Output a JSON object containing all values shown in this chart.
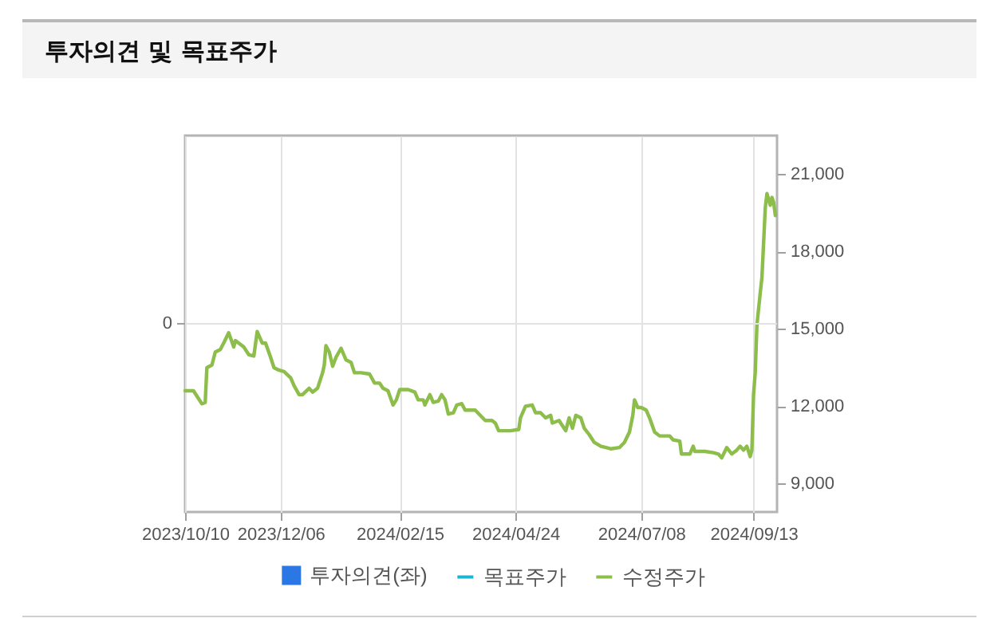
{
  "chart_data": {
    "type": "line",
    "title": "투자의견 및 목표주가",
    "x": [
      "2023-10-10",
      "2023-10-15",
      "2023-10-20",
      "2023-10-22",
      "2023-10-23",
      "2023-10-26",
      "2023-10-28",
      "2023-10-31",
      "2023-11-02",
      "2023-11-05",
      "2023-11-08",
      "2023-11-09",
      "2023-11-11",
      "2023-11-14",
      "2023-11-17",
      "2023-11-20",
      "2023-11-22",
      "2023-11-23",
      "2023-11-25",
      "2023-11-27",
      "2023-11-30",
      "2023-12-02",
      "2023-12-05",
      "2023-12-08",
      "2023-12-12",
      "2023-12-14",
      "2023-12-17",
      "2023-12-19",
      "2023-12-23",
      "2023-12-25",
      "2023-12-28",
      "2023-12-31",
      "2024-01-01",
      "2024-01-02",
      "2024-01-04",
      "2024-01-06",
      "2024-01-08",
      "2024-01-11",
      "2024-01-14",
      "2024-01-17",
      "2024-01-19",
      "2024-01-23",
      "2024-01-28",
      "2024-01-31",
      "2024-02-03",
      "2024-02-05",
      "2024-02-08",
      "2024-02-11",
      "2024-02-13",
      "2024-02-15",
      "2024-02-20",
      "2024-02-24",
      "2024-02-26",
      "2024-02-29",
      "2024-03-01",
      "2024-03-04",
      "2024-03-06",
      "2024-03-09",
      "2024-03-11",
      "2024-03-13",
      "2024-03-15",
      "2024-03-18",
      "2024-03-20",
      "2024-03-23",
      "2024-03-25",
      "2024-03-31",
      "2024-04-03",
      "2024-04-06",
      "2024-04-10",
      "2024-04-12",
      "2024-04-14",
      "2024-04-21",
      "2024-04-26",
      "2024-04-27",
      "2024-04-30",
      "2024-05-04",
      "2024-05-06",
      "2024-05-09",
      "2024-05-12",
      "2024-05-15",
      "2024-05-16",
      "2024-05-20",
      "2024-05-22",
      "2024-05-24",
      "2024-05-26",
      "2024-05-28",
      "2024-05-30",
      "2024-06-02",
      "2024-06-04",
      "2024-06-07",
      "2024-06-10",
      "2024-06-14",
      "2024-06-20",
      "2024-06-25",
      "2024-06-28",
      "2024-07-01",
      "2024-07-03",
      "2024-07-04",
      "2024-07-06",
      "2024-07-08",
      "2024-07-11",
      "2024-07-13",
      "2024-07-16",
      "2024-07-19",
      "2024-07-25",
      "2024-07-27",
      "2024-07-31",
      "2024-08-01",
      "2024-08-06",
      "2024-08-08",
      "2024-08-09",
      "2024-08-15",
      "2024-08-20",
      "2024-08-23",
      "2024-08-25",
      "2024-08-28",
      "2024-08-31",
      "2024-09-03",
      "2024-09-05",
      "2024-09-07",
      "2024-09-09",
      "2024-09-11",
      "2024-09-12",
      "2024-09-13",
      "2024-09-14",
      "2024-09-15",
      "2024-09-17",
      "2024-09-18",
      "2024-09-19",
      "2024-09-20",
      "2024-09-21",
      "2024-09-23",
      "2024-09-24",
      "2024-09-25",
      "2024-09-26"
    ],
    "series": [
      {
        "name": "투자의견(좌)",
        "type": "bar",
        "color": "#2b78e4",
        "values": [
          null,
          null,
          null,
          null,
          null,
          null,
          null,
          null,
          null,
          null,
          null,
          null,
          null,
          null,
          null,
          null,
          null,
          null,
          null,
          null,
          null,
          null,
          null,
          null,
          null,
          null,
          null,
          null,
          null,
          null,
          null,
          null,
          null,
          null,
          null,
          null,
          null,
          null,
          null,
          null,
          null,
          null,
          null,
          null,
          null,
          null,
          null,
          null,
          null,
          null,
          null,
          null,
          null,
          null,
          null,
          null,
          null,
          null,
          null,
          null,
          null,
          null,
          null,
          null,
          null,
          null,
          null,
          null,
          null,
          null,
          null,
          null,
          null,
          null,
          null,
          null,
          null,
          null,
          null,
          null,
          null,
          null,
          null,
          null,
          null,
          null,
          null,
          null,
          null,
          null,
          null,
          null,
          null,
          null,
          null,
          null,
          null,
          null,
          null,
          null,
          null,
          null,
          null,
          null,
          null,
          null,
          null,
          null,
          null,
          null,
          null,
          null,
          null,
          null,
          null,
          null,
          null,
          null,
          null,
          null,
          null,
          null,
          null,
          null,
          null,
          null,
          null,
          null,
          null,
          null,
          null,
          null,
          null,
          null,
          null
        ]
      },
      {
        "name": "목표주가",
        "color": "#1cb4d0",
        "values": [
          null,
          null,
          null,
          null,
          null,
          null,
          null,
          null,
          null,
          null,
          null,
          null,
          null,
          null,
          null,
          null,
          null,
          null,
          null,
          null,
          null,
          null,
          null,
          null,
          null,
          null,
          null,
          null,
          null,
          null,
          null,
          null,
          null,
          null,
          null,
          null,
          null,
          null,
          null,
          null,
          null,
          null,
          null,
          null,
          null,
          null,
          null,
          null,
          null,
          null,
          null,
          null,
          null,
          null,
          null,
          null,
          null,
          null,
          null,
          null,
          null,
          null,
          null,
          null,
          null,
          null,
          null,
          null,
          null,
          null,
          null,
          null,
          null,
          null,
          null,
          null,
          null,
          null,
          null,
          null,
          null,
          null,
          null,
          null,
          null,
          null,
          null,
          null,
          null,
          null,
          null,
          null,
          null,
          null,
          null,
          null,
          null,
          null,
          null,
          null,
          null,
          null,
          null,
          null,
          null,
          null,
          null,
          null,
          null,
          null,
          null,
          null,
          null,
          null,
          null,
          null,
          null,
          null,
          null,
          null,
          null,
          null,
          null,
          null,
          null,
          null,
          null,
          null,
          null,
          null,
          null,
          null,
          null,
          null,
          null
        ]
      },
      {
        "name": "수정주가",
        "axis": "y2",
        "color": "#8dbd4a",
        "values": [
          12600,
          12600,
          12100,
          12150,
          13500,
          13600,
          14100,
          14200,
          14450,
          14850,
          14300,
          14550,
          14450,
          14300,
          14000,
          13950,
          14900,
          14750,
          14450,
          14450,
          13900,
          13500,
          13400,
          13350,
          13100,
          12800,
          12450,
          12450,
          12700,
          12550,
          12700,
          13300,
          13600,
          14350,
          14100,
          13550,
          13900,
          14250,
          13800,
          13700,
          13300,
          13300,
          13250,
          12900,
          12900,
          12700,
          12600,
          12050,
          12250,
          12650,
          12650,
          12550,
          12250,
          12250,
          12050,
          12450,
          12150,
          12200,
          12450,
          12250,
          11700,
          11750,
          12050,
          12100,
          11850,
          11850,
          11650,
          11450,
          11450,
          11350,
          11050,
          11050,
          11100,
          11550,
          12000,
          12050,
          11750,
          11750,
          11550,
          11650,
          11350,
          11450,
          11250,
          11050,
          11550,
          11150,
          11650,
          11550,
          11150,
          10900,
          10600,
          10450,
          10350,
          10400,
          10600,
          11000,
          11650,
          12250,
          11950,
          11950,
          11850,
          11550,
          11000,
          10850,
          10850,
          10700,
          10650,
          10150,
          10150,
          10450,
          10250,
          10250,
          10200,
          10150,
          10000,
          10400,
          10150,
          10300,
          10450,
          10300,
          10450,
          10050,
          10300,
          12450,
          13300,
          15150,
          16400,
          17000,
          18350,
          19700,
          20250,
          19800,
          20100,
          19900,
          19400
        ]
      }
    ],
    "xlim": [
      "2023-10-10",
      "2024-09-27"
    ],
    "xticks": [
      {
        "value": "2023-10-10",
        "label": "2023/10/10"
      },
      {
        "value": "2023-12-06",
        "label": "2023/12/06"
      },
      {
        "value": "2024-02-15",
        "label": "2024/02/15"
      },
      {
        "value": "2024-04-24",
        "label": "2024/04/24"
      },
      {
        "value": "2024-07-08",
        "label": "2024/07/08"
      },
      {
        "value": "2024-09-13",
        "label": "2024/09/13"
      }
    ],
    "y2lim": [
      7900,
      22500
    ],
    "y2ticks": [
      {
        "value": 9000,
        "label": "9,000"
      },
      {
        "value": 12000,
        "label": "12,000"
      },
      {
        "value": 15000,
        "label": "15,000"
      },
      {
        "value": 18000,
        "label": "18,000"
      },
      {
        "value": 21000,
        "label": "21,000"
      }
    ],
    "annotations": [
      "0"
    ],
    "grid": true,
    "legend": "bottom"
  }
}
